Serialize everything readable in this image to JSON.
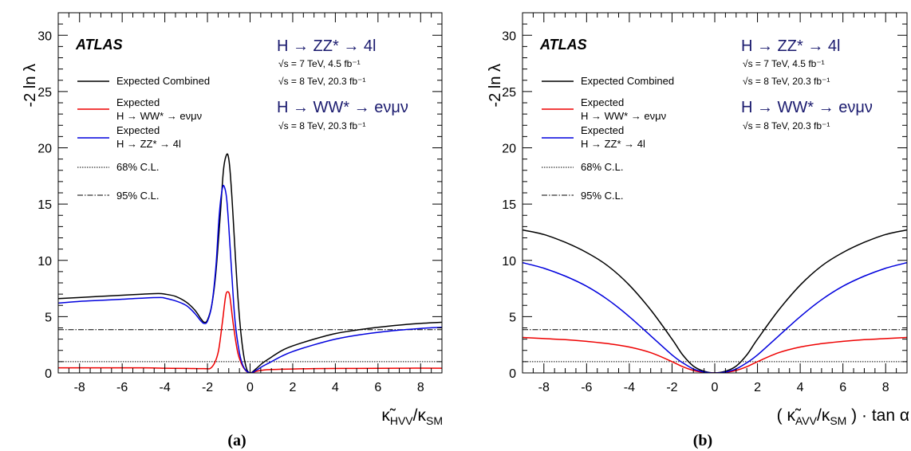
{
  "chart_data": [
    {
      "type": "line",
      "panel_label": "(a)",
      "experiment": "ATLAS",
      "ylabel": "-2 ln λ",
      "xlabel_main": "κ̃",
      "xlabel_sub": "HVV",
      "xlabel_den": "/κ",
      "xlabel_den_sub": "SM",
      "xlim": [
        -9,
        9
      ],
      "ylim": [
        0,
        32
      ],
      "xticks": [
        "-8",
        "-6",
        "-4",
        "-2",
        "0",
        "2",
        "4",
        "6",
        "8"
      ],
      "yticks": [
        "0",
        "5",
        "10",
        "15",
        "20",
        "25",
        "30"
      ],
      "grid": false,
      "process_labels": {
        "zz": "H → ZZ* → 4l",
        "zz_lumi1": "√s = 7 TeV, 4.5 fb⁻¹",
        "zz_lumi2": "√s = 8 TeV, 20.3 fb⁻¹",
        "ww": "H → WW* → eνμν",
        "ww_lumi": "√s = 8 TeV, 20.3 fb⁻¹"
      },
      "legend": {
        "combined": "Expected Combined",
        "ww_line1": "Expected",
        "ww_line2": "H → WW* → eνμν",
        "zz_line1": "Expected",
        "zz_line2": "H → ZZ* → 4l",
        "cl68": "68% C.L.",
        "cl95": "95% C.L."
      },
      "cl_levels": {
        "cl68": 1.0,
        "cl95": 3.84
      },
      "series": [
        {
          "name": "Expected Combined",
          "color": "#000000",
          "points": [
            [
              -9,
              6.6
            ],
            [
              -8,
              6.7
            ],
            [
              -7,
              6.8
            ],
            [
              -6,
              6.9
            ],
            [
              -5,
              7.0
            ],
            [
              -4.3,
              7.05
            ],
            [
              -4,
              7.0
            ],
            [
              -3.5,
              6.8
            ],
            [
              -3,
              6.3
            ],
            [
              -2.6,
              5.6
            ],
            [
              -2.3,
              4.8
            ],
            [
              -2.15,
              4.5
            ],
            [
              -2.0,
              4.7
            ],
            [
              -1.8,
              6.0
            ],
            [
              -1.6,
              9.0
            ],
            [
              -1.4,
              14.0
            ],
            [
              -1.25,
              18.0
            ],
            [
              -1.1,
              19.4
            ],
            [
              -1.0,
              19.0
            ],
            [
              -0.9,
              17.0
            ],
            [
              -0.8,
              14.0
            ],
            [
              -0.6,
              7.5
            ],
            [
              -0.4,
              3.0
            ],
            [
              -0.2,
              0.6
            ],
            [
              0,
              0.0
            ],
            [
              0.3,
              0.4
            ],
            [
              0.6,
              0.9
            ],
            [
              1,
              1.4
            ],
            [
              1.5,
              2.0
            ],
            [
              2,
              2.4
            ],
            [
              3,
              3.0
            ],
            [
              4,
              3.5
            ],
            [
              5,
              3.8
            ],
            [
              6,
              4.05
            ],
            [
              7,
              4.25
            ],
            [
              8,
              4.4
            ],
            [
              9,
              4.5
            ]
          ]
        },
        {
          "name": "Expected H → WW* → eνμν",
          "color": "#ee0000",
          "points": [
            [
              -9,
              0.45
            ],
            [
              -7,
              0.45
            ],
            [
              -5,
              0.45
            ],
            [
              -4,
              0.42
            ],
            [
              -3,
              0.4
            ],
            [
              -2.2,
              0.38
            ],
            [
              -1.8,
              0.5
            ],
            [
              -1.5,
              1.8
            ],
            [
              -1.3,
              4.5
            ],
            [
              -1.15,
              6.8
            ],
            [
              -1.05,
              7.2
            ],
            [
              -0.95,
              6.8
            ],
            [
              -0.8,
              4.5
            ],
            [
              -0.6,
              2.0
            ],
            [
              -0.4,
              0.8
            ],
            [
              -0.2,
              0.2
            ],
            [
              0,
              0.0
            ],
            [
              0.3,
              0.15
            ],
            [
              0.6,
              0.25
            ],
            [
              1,
              0.3
            ],
            [
              2,
              0.35
            ],
            [
              3,
              0.38
            ],
            [
              5,
              0.4
            ],
            [
              7,
              0.42
            ],
            [
              9,
              0.42
            ]
          ]
        },
        {
          "name": "Expected H → ZZ* → 4l",
          "color": "#0000dd",
          "points": [
            [
              -9,
              6.2
            ],
            [
              -8,
              6.35
            ],
            [
              -7,
              6.45
            ],
            [
              -6,
              6.55
            ],
            [
              -5,
              6.65
            ],
            [
              -4.2,
              6.7
            ],
            [
              -4,
              6.65
            ],
            [
              -3.5,
              6.4
            ],
            [
              -3,
              6.0
            ],
            [
              -2.6,
              5.3
            ],
            [
              -2.3,
              4.6
            ],
            [
              -2.15,
              4.4
            ],
            [
              -2.0,
              4.6
            ],
            [
              -1.8,
              6.0
            ],
            [
              -1.6,
              9.5
            ],
            [
              -1.45,
              14.0
            ],
            [
              -1.3,
              16.4
            ],
            [
              -1.2,
              16.5
            ],
            [
              -1.1,
              15.5
            ],
            [
              -1.0,
              13.0
            ],
            [
              -0.85,
              8.5
            ],
            [
              -0.7,
              4.5
            ],
            [
              -0.5,
              1.8
            ],
            [
              -0.3,
              0.5
            ],
            [
              0,
              0.0
            ],
            [
              0.3,
              0.25
            ],
            [
              0.6,
              0.6
            ],
            [
              1,
              1.0
            ],
            [
              1.5,
              1.5
            ],
            [
              2,
              1.9
            ],
            [
              3,
              2.5
            ],
            [
              4,
              3.0
            ],
            [
              5,
              3.35
            ],
            [
              6,
              3.6
            ],
            [
              7,
              3.8
            ],
            [
              8,
              3.95
            ],
            [
              9,
              4.05
            ]
          ]
        }
      ]
    },
    {
      "type": "line",
      "panel_label": "(b)",
      "experiment": "ATLAS",
      "ylabel": "-2 ln λ",
      "xlabel_main": "( κ̃",
      "xlabel_sub": "AVV",
      "xlabel_den": "/κ",
      "xlabel_den_sub": "SM",
      "xlabel_tail": " ) · tan α",
      "xlim": [
        -9,
        9
      ],
      "ylim": [
        0,
        32
      ],
      "xticks": [
        "-8",
        "-6",
        "-4",
        "-2",
        "0",
        "2",
        "4",
        "6",
        "8"
      ],
      "yticks": [
        "0",
        "5",
        "10",
        "15",
        "20",
        "25",
        "30"
      ],
      "grid": false,
      "process_labels": {
        "zz": "H → ZZ* → 4l",
        "zz_lumi1": "√s = 7 TeV, 4.5 fb⁻¹",
        "zz_lumi2": "√s = 8 TeV, 20.3 fb⁻¹",
        "ww": "H → WW* → eνμν",
        "ww_lumi": "√s = 8 TeV, 20.3 fb⁻¹"
      },
      "legend": {
        "combined": "Expected Combined",
        "ww_line1": "Expected",
        "ww_line2": "H → WW* → eνμν",
        "zz_line1": "Expected",
        "zz_line2": "H → ZZ* → 4l",
        "cl68": "68% C.L.",
        "cl95": "95% C.L."
      },
      "cl_levels": {
        "cl68": 1.0,
        "cl95": 3.84
      },
      "series": [
        {
          "name": "Expected Combined",
          "color": "#000000",
          "points": [
            [
              -9,
              12.7
            ],
            [
              -8,
              12.3
            ],
            [
              -7,
              11.6
            ],
            [
              -6,
              10.7
            ],
            [
              -5,
              9.5
            ],
            [
              -4,
              7.8
            ],
            [
              -3,
              5.6
            ],
            [
              -2,
              3.0
            ],
            [
              -1.5,
              1.6
            ],
            [
              -1,
              0.6
            ],
            [
              -0.5,
              0.15
            ],
            [
              0,
              0.0
            ],
            [
              0.5,
              0.15
            ],
            [
              1,
              0.6
            ],
            [
              1.5,
              1.6
            ],
            [
              2,
              3.0
            ],
            [
              3,
              5.6
            ],
            [
              4,
              7.8
            ],
            [
              5,
              9.5
            ],
            [
              6,
              10.7
            ],
            [
              7,
              11.6
            ],
            [
              8,
              12.3
            ],
            [
              9,
              12.7
            ]
          ]
        },
        {
          "name": "Expected H → WW* → eνμν",
          "color": "#ee0000",
          "points": [
            [
              -9,
              3.15
            ],
            [
              -8,
              3.05
            ],
            [
              -7,
              2.95
            ],
            [
              -6,
              2.8
            ],
            [
              -5,
              2.6
            ],
            [
              -4,
              2.3
            ],
            [
              -3,
              1.8
            ],
            [
              -2,
              1.0
            ],
            [
              -1.5,
              0.55
            ],
            [
              -1,
              0.22
            ],
            [
              -0.5,
              0.05
            ],
            [
              0,
              0.0
            ],
            [
              0.5,
              0.05
            ],
            [
              1,
              0.22
            ],
            [
              1.5,
              0.55
            ],
            [
              2,
              1.0
            ],
            [
              3,
              1.8
            ],
            [
              4,
              2.3
            ],
            [
              5,
              2.6
            ],
            [
              6,
              2.8
            ],
            [
              7,
              2.95
            ],
            [
              8,
              3.05
            ],
            [
              9,
              3.15
            ]
          ]
        },
        {
          "name": "Expected H → ZZ* → 4l",
          "color": "#0000dd",
          "points": [
            [
              -9,
              9.8
            ],
            [
              -8,
              9.3
            ],
            [
              -7,
              8.6
            ],
            [
              -6,
              7.7
            ],
            [
              -5,
              6.5
            ],
            [
              -4,
              5.0
            ],
            [
              -3,
              3.3
            ],
            [
              -2,
              1.6
            ],
            [
              -1.5,
              0.9
            ],
            [
              -1,
              0.35
            ],
            [
              -0.5,
              0.08
            ],
            [
              0,
              0.0
            ],
            [
              0.5,
              0.08
            ],
            [
              1,
              0.35
            ],
            [
              1.5,
              0.9
            ],
            [
              2,
              1.6
            ],
            [
              3,
              3.3
            ],
            [
              4,
              5.0
            ],
            [
              5,
              6.5
            ],
            [
              6,
              7.7
            ],
            [
              7,
              8.6
            ],
            [
              8,
              9.3
            ],
            [
              9,
              9.8
            ]
          ]
        }
      ]
    }
  ]
}
